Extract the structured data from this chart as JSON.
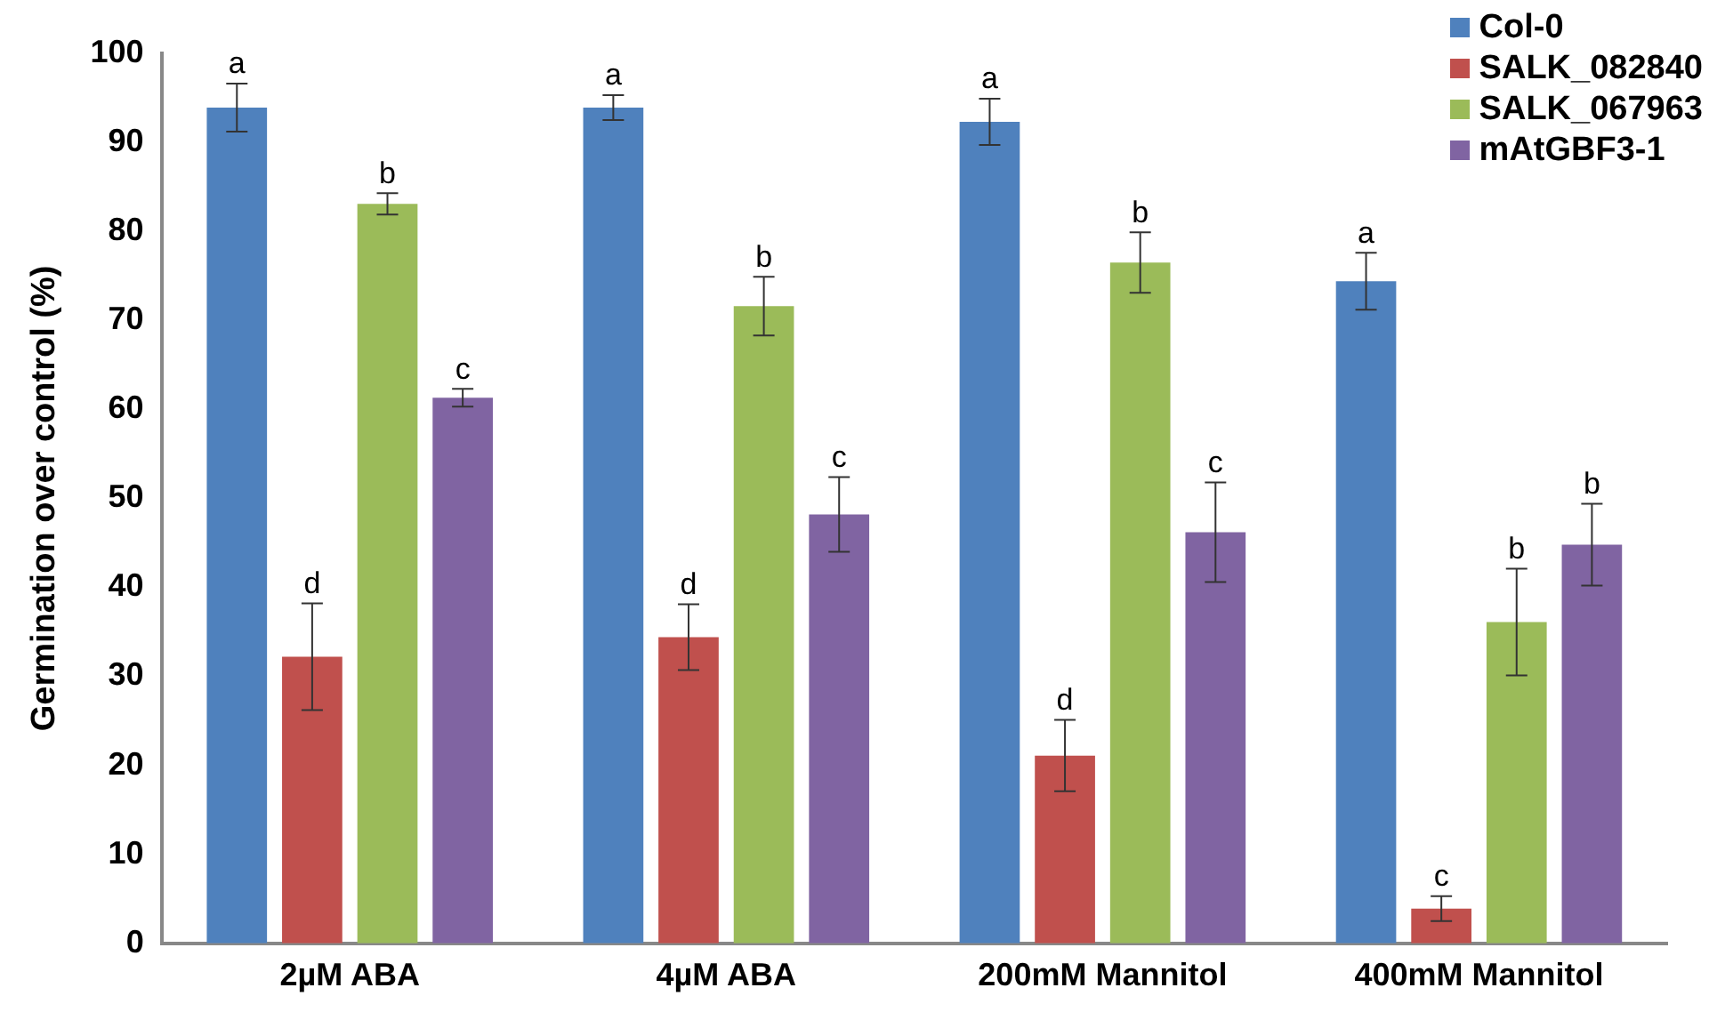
{
  "chart_data": {
    "type": "bar",
    "ylabel": "Germination over control (%)",
    "categories": [
      "2µM ABA",
      "4µM ABA",
      "200mM Mannitol",
      "400mM Mannitol"
    ],
    "series": [
      {
        "name": "Col-0",
        "color": "#4f81bd",
        "values": [
          93.9,
          93.9,
          92.3,
          74.4
        ],
        "errors": [
          2.7,
          1.4,
          2.6,
          3.2
        ],
        "value_labels": [
          "a",
          "a",
          "a",
          "a"
        ]
      },
      {
        "name": "SALK_082840",
        "color": "#c0504d",
        "values": [
          32.2,
          34.4,
          21.1,
          3.9
        ],
        "errors": [
          6,
          3.7,
          4,
          1.4
        ],
        "value_labels": [
          "d",
          "d",
          "d",
          "c"
        ]
      },
      {
        "name": "SALK_067963",
        "color": "#9bbb59",
        "values": [
          83.1,
          71.6,
          76.5,
          36.1
        ],
        "errors": [
          1.2,
          3.3,
          3.4,
          6
        ],
        "value_labels": [
          "b",
          "b",
          "b",
          "b"
        ]
      },
      {
        "name": "mAtGBF3-1",
        "color": "#8064a2",
        "values": [
          61.3,
          48.2,
          46.2,
          44.8
        ],
        "errors": [
          1,
          4.2,
          5.6,
          4.6
        ],
        "value_labels": [
          "c",
          "c",
          "c",
          "b"
        ]
      }
    ],
    "ylim": [
      0,
      100
    ],
    "yticks": [
      0,
      10,
      20,
      30,
      40,
      50,
      60,
      70,
      80,
      90,
      100
    ],
    "grid": false,
    "legend": "top right"
  }
}
